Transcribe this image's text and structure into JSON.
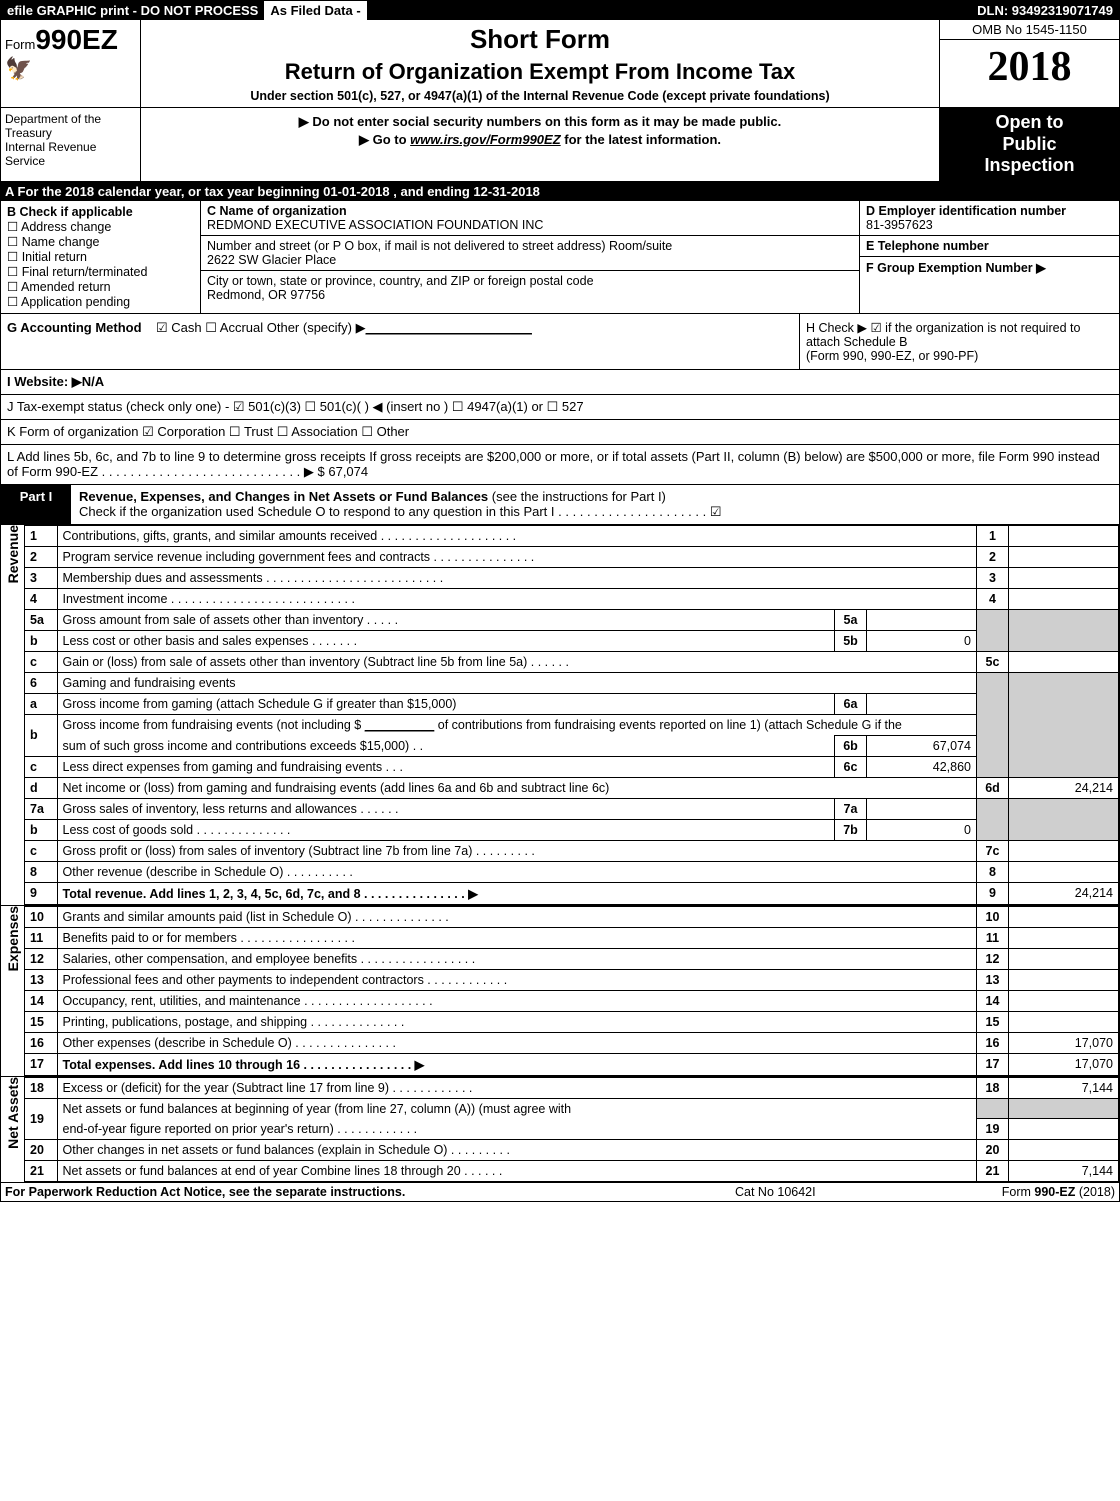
{
  "top": {
    "efile": "efile GRAPHIC print - DO NOT PROCESS",
    "asfiled": "As Filed Data -",
    "dln": "DLN: 93492319071749"
  },
  "header": {
    "form_prefix": "Form",
    "form_no": "990EZ",
    "short_form": "Short Form",
    "title": "Return of Organization Exempt From Income Tax",
    "subtitle": "Under section 501(c), 527, or 4947(a)(1) of the Internal Revenue Code (except private foundations)",
    "omb": "OMB No 1545-1150",
    "year": "2018",
    "dept": "Department of the Treasury",
    "irs": "Internal Revenue Service",
    "warn1": "▶ Do not enter social security numbers on this form as it may be made public.",
    "warn2_pre": "▶ Go to ",
    "warn2_link": "www.irs.gov/Form990EZ",
    "warn2_post": " for the latest information.",
    "open_to": "Open to",
    "public": "Public",
    "inspection": "Inspection"
  },
  "row_a": "A  For the 2018 calendar year, or tax year beginning 01-01-2018           , and ending 12-31-2018",
  "sec_b": {
    "title": "B  Check if applicable",
    "items": [
      "Address change",
      "Name change",
      "Initial return",
      "Final return/terminated",
      "Amended return",
      "Application pending"
    ]
  },
  "sec_c": {
    "name_label": "C Name of organization",
    "name": "REDMOND EXECUTIVE ASSOCIATION FOUNDATION INC",
    "street_label": "Number and street (or P O box, if mail is not delivered to street address) Room/suite",
    "street": "2622 SW Glacier Place",
    "city_label": "City or town, state or province, country, and ZIP or foreign postal code",
    "city": "Redmond, OR  97756"
  },
  "sec_def": {
    "d_label": "D Employer identification number",
    "d_val": "81-3957623",
    "e_label": "E Telephone number",
    "e_val": "",
    "f_label": "F Group Exemption Number   ▶",
    "f_val": ""
  },
  "sec_g": {
    "label": "G Accounting Method",
    "opts": "☑ Cash   ☐ Accrual   Other (specify) ▶",
    "underline": "_______________________"
  },
  "sec_h": {
    "text1": "H   Check ▶  ☑  if the organization is not required to attach Schedule B",
    "text2": "(Form 990, 990-EZ, or 990-PF)"
  },
  "sec_i": "I Website: ▶N/A",
  "sec_j": "J Tax-exempt status (check only one) - ☑ 501(c)(3)  ☐ 501(c)(  ) ◀ (insert no ) ☐ 4947(a)(1) or ☐ 527",
  "sec_k": "K Form of organization    ☑ Corporation  ☐ Trust  ☐ Association  ☐ Other",
  "sec_l": {
    "text": "L Add lines 5b, 6c, and 7b to line 9 to determine gross receipts  If gross receipts are $200,000 or more, or if total assets (Part II, column (B) below) are $500,000 or more, file Form 990 instead of Form 990-EZ . . . . . . . . . . . . . . . . . . . . . . . . . . . . ▶ ",
    "amount": "$ 67,074"
  },
  "part1": {
    "label": "Part I",
    "title": "Revenue, Expenses, and Changes in Net Assets or Fund Balances",
    "title_paren": " (see the instructions for Part I)",
    "check": "Check if the organization used Schedule O to respond to any question in this Part I . . . . . . . . . . . . . . . . . . . . . ☑"
  },
  "sidelabels": {
    "revenue": "Revenue",
    "expenses": "Expenses",
    "netassets": "Net Assets"
  },
  "lines": {
    "l1": {
      "n": "1",
      "d": "Contributions, gifts, grants, and similar amounts received . . . . . . . . . . . . . . . . . . . .",
      "ln": "1",
      "v": ""
    },
    "l2": {
      "n": "2",
      "d": "Program service revenue including government fees and contracts . . . . . . . . . . . . . . .",
      "ln": "2",
      "v": ""
    },
    "l3": {
      "n": "3",
      "d": "Membership dues and assessments . . . . . . . . . . . . . . . . . . . . . . . . . .",
      "ln": "3",
      "v": ""
    },
    "l4": {
      "n": "4",
      "d": "Investment income . . . . . . . . . . . . . . . . . . . . . . . . . . .",
      "ln": "4",
      "v": ""
    },
    "l5a": {
      "n": "5a",
      "d": "Gross amount from sale of assets other than inventory . . . . .",
      "il": "5a",
      "iv": ""
    },
    "l5b": {
      "n": "b",
      "d": "Less  cost or other basis and sales expenses . . . . . . .",
      "il": "5b",
      "iv": "0"
    },
    "l5c": {
      "n": "c",
      "d": "Gain or (loss) from sale of assets other than inventory (Subtract line 5b from line 5a) . . . . . .",
      "ln": "5c",
      "v": ""
    },
    "l6": {
      "n": "6",
      "d": "Gaming and fundraising events"
    },
    "l6a": {
      "n": "a",
      "d": "Gross income from gaming (attach Schedule G if greater than $15,000)",
      "il": "6a",
      "iv": ""
    },
    "l6b": {
      "n": "b",
      "d1": "Gross income from fundraising events (not including $ ",
      "d1u": "__________",
      "d2": " of contributions from fundraising events reported on line 1) (attach Schedule G if the",
      "d3": "sum of such gross income and contributions exceeds $15,000)  . .",
      "il": "6b",
      "iv": "67,074"
    },
    "l6c": {
      "n": "c",
      "d": "Less  direct expenses from gaming and fundraising events     . . .",
      "il": "6c",
      "iv": "42,860"
    },
    "l6d": {
      "n": "d",
      "d": "Net income or (loss) from gaming and fundraising events (add lines 6a and 6b and subtract line 6c)",
      "ln": "6d",
      "v": "24,214"
    },
    "l7a": {
      "n": "7a",
      "d": "Gross sales of inventory, less returns and allowances . . . . . .",
      "il": "7a",
      "iv": ""
    },
    "l7b": {
      "n": "b",
      "d": "Less  cost of goods sold          . . . . . . . . . . . . . .",
      "il": "7b",
      "iv": "0"
    },
    "l7c": {
      "n": "c",
      "d": "Gross profit or (loss) from sales of inventory (Subtract line 7b from line 7a) . . . . . . . . .",
      "ln": "7c",
      "v": ""
    },
    "l8": {
      "n": "8",
      "d": "Other revenue (describe in Schedule O)                         . . . . . . . . . .",
      "ln": "8",
      "v": ""
    },
    "l9": {
      "n": "9",
      "d": "Total revenue. Add lines 1, 2, 3, 4, 5c, 6d, 7c, and 8  . . . . . . . . . . . . . . .  ▶",
      "ln": "9",
      "v": "24,214"
    },
    "l10": {
      "n": "10",
      "d": "Grants and similar amounts paid (list in Schedule O)          . . . . . . . . . . . . . .",
      "ln": "10",
      "v": ""
    },
    "l11": {
      "n": "11",
      "d": "Benefits paid to or for members                   . . . . . . . . . . . . . . . . .",
      "ln": "11",
      "v": ""
    },
    "l12": {
      "n": "12",
      "d": "Salaries, other compensation, and employee benefits . . . . . . . . . . . . . . . . .",
      "ln": "12",
      "v": ""
    },
    "l13": {
      "n": "13",
      "d": "Professional fees and other payments to independent contractors  . . . . . . . . . . . .",
      "ln": "13",
      "v": ""
    },
    "l14": {
      "n": "14",
      "d": "Occupancy, rent, utilities, and maintenance . . . . . . . . . . . . . . . . . . .",
      "ln": "14",
      "v": ""
    },
    "l15": {
      "n": "15",
      "d": "Printing, publications, postage, and shipping              . . . . . . . . . . . . . .",
      "ln": "15",
      "v": ""
    },
    "l16": {
      "n": "16",
      "d": "Other expenses (describe in Schedule O)               . . . . . . . . . . . . . . .",
      "ln": "16",
      "v": "17,070"
    },
    "l17": {
      "n": "17",
      "d": "Total expenses. Add lines 10 through 16        . . . . . . . . . . . . . . . .  ▶",
      "ln": "17",
      "v": "17,070"
    },
    "l18": {
      "n": "18",
      "d": "Excess or (deficit) for the year (Subtract line 17 from line 9)     . . . . . . . . . . . .",
      "ln": "18",
      "v": "7,144"
    },
    "l19": {
      "n": "19",
      "d": "Net assets or fund balances at beginning of year (from line 27, column (A)) (must agree with"
    },
    "l19b": {
      "d": "end-of-year figure reported on prior year's return)             . . . . . . . . . . . .",
      "ln": "19",
      "v": ""
    },
    "l20": {
      "n": "20",
      "d": "Other changes in net assets or fund balances (explain in Schedule O)    . . . . . . . . .",
      "ln": "20",
      "v": ""
    },
    "l21": {
      "n": "21",
      "d": "Net assets or fund balances at end of year  Combine lines 18 through 20       . . . . . .",
      "ln": "21",
      "v": "7,144"
    }
  },
  "footer": {
    "left": "For Paperwork Reduction Act Notice, see the separate instructions.",
    "mid": "Cat No  10642I",
    "right": "Form 990-EZ (2018)"
  }
}
